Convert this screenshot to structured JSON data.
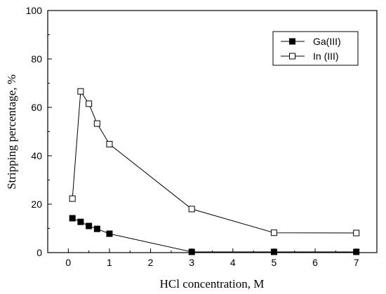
{
  "chart_data": {
    "type": "line",
    "title": "",
    "xlabel": "HCl concentration, M",
    "ylabel": "Stripping percentage, %",
    "xlim": [
      -0.5,
      7.5
    ],
    "ylim": [
      0,
      100
    ],
    "xticks": [
      0,
      1,
      2,
      3,
      4,
      5,
      6,
      7
    ],
    "yticks": [
      0,
      20,
      40,
      60,
      80,
      100
    ],
    "grid": false,
    "legend_position": "top-right",
    "series": [
      {
        "name": "Ga(III)",
        "marker": "filled-square",
        "color": "#000000",
        "x": [
          0.1,
          0.3,
          0.5,
          0.7,
          1,
          3,
          5,
          7
        ],
        "y": [
          14.2,
          12.7,
          11.0,
          9.8,
          7.8,
          0.3,
          0.3,
          0.3
        ]
      },
      {
        "name": "In (III)",
        "marker": "open-square",
        "color": "#000000",
        "x": [
          0.1,
          0.3,
          0.5,
          0.7,
          1,
          3,
          5,
          7
        ],
        "y": [
          22.3,
          66.6,
          61.5,
          53.3,
          44.8,
          18.0,
          8.2,
          8.1
        ]
      }
    ]
  }
}
